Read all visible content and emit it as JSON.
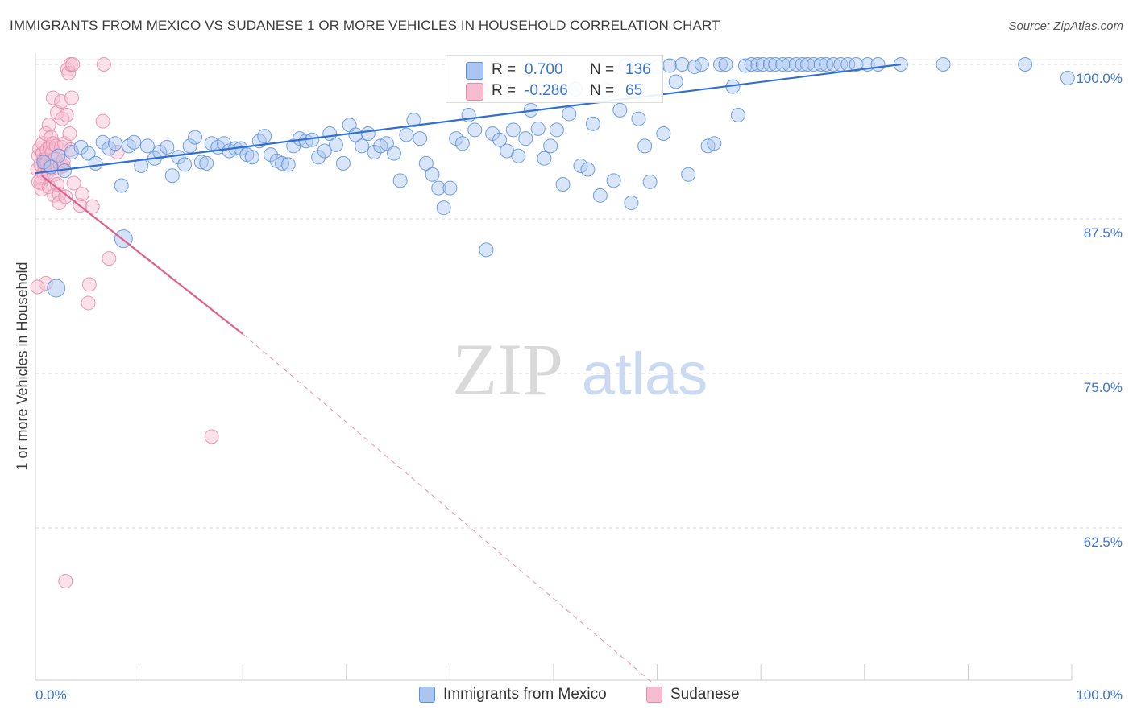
{
  "header": {
    "title": "IMMIGRANTS FROM MEXICO VS SUDANESE 1 OR MORE VEHICLES IN HOUSEHOLD CORRELATION CHART",
    "source": "Source: ZipAtlas.com"
  },
  "watermark": {
    "zip": "ZIP",
    "atlas": "atlas"
  },
  "colors": {
    "blue": "#5b8fe0",
    "blue_fill": "#aac6f0",
    "blue_line": "#2e6fd4",
    "pink": "#e88aa8",
    "pink_fill": "#f6bdd0",
    "pink_line": "#e06090",
    "axis_text": "#3a74d6",
    "grid": "#dddddd"
  },
  "legend_box": {
    "rows": [
      {
        "r_label": "R =",
        "r_value": "0.700",
        "n_label": "N =",
        "n_value": "136"
      },
      {
        "r_label": "R =",
        "r_value": "-0.286",
        "n_label": "N =",
        "n_value": "65"
      }
    ]
  },
  "legend_bottom": {
    "items": [
      "Immigrants from Mexico",
      "Sudanese"
    ]
  },
  "chart_data": {
    "type": "scatter",
    "title": "IMMIGRANTS FROM MEXICO VS SUDANESE 1 OR MORE VEHICLES IN HOUSEHOLD CORRELATION CHART",
    "xlabel": "",
    "ylabel": "1 or more Vehicles in Household",
    "xlim": [
      0,
      100
    ],
    "ylim": [
      50,
      101.5
    ],
    "x_tick_labels": [
      {
        "x": 0,
        "label": "0.0%"
      },
      {
        "x": 100,
        "label": "100.0%"
      }
    ],
    "y_tick_labels": [
      {
        "y": 100,
        "label": "100.0%"
      },
      {
        "y": 87.5,
        "label": "87.5%"
      },
      {
        "y": 75,
        "label": "75.0%"
      },
      {
        "y": 62.5,
        "label": "62.5%"
      }
    ],
    "grid": true,
    "legend_position": "bottom",
    "series": [
      {
        "name": "Immigrants from Mexico",
        "r": 0.7,
        "n": 136,
        "trend": {
          "x": [
            0,
            83.5
          ],
          "y": [
            91.2,
            100.0
          ]
        },
        "points": [
          [
            0.8,
            92.1
          ],
          [
            1.5,
            91.7
          ],
          [
            2.2,
            92.6
          ],
          [
            2.8,
            91.4
          ],
          [
            3.5,
            92.9
          ],
          [
            4.4,
            93.3
          ],
          [
            5.1,
            92.8
          ],
          [
            5.8,
            92.0
          ],
          [
            6.5,
            93.7
          ],
          [
            7.1,
            93.2
          ],
          [
            7.7,
            93.6
          ],
          [
            8.3,
            90.2
          ],
          [
            9.0,
            93.4
          ],
          [
            9.5,
            93.7
          ],
          [
            10.2,
            91.8
          ],
          [
            10.8,
            93.4
          ],
          [
            11.5,
            92.4
          ],
          [
            12.0,
            92.9
          ],
          [
            12.7,
            93.3
          ],
          [
            13.2,
            91.0
          ],
          [
            13.8,
            92.5
          ],
          [
            14.4,
            91.9
          ],
          [
            14.9,
            93.4
          ],
          [
            15.4,
            94.1
          ],
          [
            16.0,
            92.1
          ],
          [
            16.5,
            92.0
          ],
          [
            17.0,
            93.6
          ],
          [
            17.6,
            93.3
          ],
          [
            18.2,
            93.6
          ],
          [
            18.7,
            93.0
          ],
          [
            19.3,
            93.2
          ],
          [
            19.8,
            93.2
          ],
          [
            20.4,
            92.7
          ],
          [
            20.9,
            92.5
          ],
          [
            21.6,
            93.8
          ],
          [
            22.1,
            94.2
          ],
          [
            22.7,
            92.7
          ],
          [
            23.3,
            92.2
          ],
          [
            23.8,
            92.0
          ],
          [
            24.4,
            91.9
          ],
          [
            24.9,
            93.4
          ],
          [
            25.5,
            94.0
          ],
          [
            26.1,
            93.8
          ],
          [
            26.7,
            93.9
          ],
          [
            27.3,
            92.5
          ],
          [
            27.9,
            93.0
          ],
          [
            28.4,
            94.4
          ],
          [
            29.0,
            93.5
          ],
          [
            29.7,
            92.0
          ],
          [
            30.3,
            95.1
          ],
          [
            30.9,
            94.3
          ],
          [
            31.5,
            93.4
          ],
          [
            32.1,
            94.4
          ],
          [
            32.7,
            92.9
          ],
          [
            33.3,
            93.4
          ],
          [
            33.9,
            93.6
          ],
          [
            34.6,
            92.8
          ],
          [
            35.2,
            90.6
          ],
          [
            35.8,
            94.3
          ],
          [
            36.5,
            95.5
          ],
          [
            37.1,
            94.0
          ],
          [
            37.7,
            92.0
          ],
          [
            38.3,
            91.1
          ],
          [
            38.9,
            90.0
          ],
          [
            39.4,
            88.4
          ],
          [
            40.0,
            90.0
          ],
          [
            40.6,
            94.0
          ],
          [
            41.2,
            93.6
          ],
          [
            41.8,
            95.9
          ],
          [
            42.4,
            94.7
          ],
          [
            43.0,
            98.1
          ],
          [
            43.5,
            85.0
          ],
          [
            44.1,
            94.4
          ],
          [
            44.8,
            93.9
          ],
          [
            45.5,
            93.0
          ],
          [
            46.1,
            94.7
          ],
          [
            46.6,
            92.6
          ],
          [
            47.3,
            94.0
          ],
          [
            47.8,
            96.3
          ],
          [
            48.5,
            94.8
          ],
          [
            49.1,
            92.4
          ],
          [
            49.7,
            93.4
          ],
          [
            50.3,
            94.7
          ],
          [
            50.9,
            90.3
          ],
          [
            51.5,
            96.0
          ],
          [
            52.1,
            98.0
          ],
          [
            52.6,
            91.8
          ],
          [
            53.3,
            91.5
          ],
          [
            53.8,
            95.2
          ],
          [
            54.5,
            89.4
          ],
          [
            55.1,
            97.9
          ],
          [
            55.8,
            90.6
          ],
          [
            56.4,
            96.3
          ],
          [
            57.0,
            99.9
          ],
          [
            57.5,
            88.8
          ],
          [
            58.2,
            95.6
          ],
          [
            58.8,
            93.4
          ],
          [
            59.3,
            90.5
          ],
          [
            60.0,
            99.8
          ],
          [
            60.6,
            94.4
          ],
          [
            61.2,
            99.9
          ],
          [
            61.8,
            98.6
          ],
          [
            62.4,
            100.0
          ],
          [
            63.0,
            91.1
          ],
          [
            63.6,
            99.8
          ],
          [
            64.3,
            100.0
          ],
          [
            64.9,
            93.4
          ],
          [
            65.5,
            93.6
          ],
          [
            66.1,
            100.0
          ],
          [
            66.6,
            100.0
          ],
          [
            67.3,
            98.2
          ],
          [
            67.8,
            95.9
          ],
          [
            68.5,
            99.9
          ],
          [
            69.1,
            100.0
          ],
          [
            69.7,
            100.0
          ],
          [
            70.2,
            100.0
          ],
          [
            70.9,
            100.0
          ],
          [
            71.4,
            100.0
          ],
          [
            72.1,
            100.0
          ],
          [
            72.7,
            100.0
          ],
          [
            73.4,
            100.0
          ],
          [
            74.0,
            100.0
          ],
          [
            74.5,
            100.0
          ],
          [
            75.1,
            100.0
          ],
          [
            75.8,
            100.0
          ],
          [
            76.3,
            100.0
          ],
          [
            77.0,
            100.0
          ],
          [
            77.7,
            100.0
          ],
          [
            78.4,
            100.0
          ],
          [
            79.2,
            100.0
          ],
          [
            80.3,
            100.0
          ],
          [
            81.3,
            100.0
          ],
          [
            83.5,
            100.0
          ],
          [
            87.6,
            100.0
          ],
          [
            95.5,
            100.0
          ],
          [
            99.6,
            98.9
          ]
        ],
        "large_points": [
          [
            2.0,
            81.9
          ],
          [
            8.5,
            85.9
          ]
        ]
      },
      {
        "name": "Sudanese",
        "r": -0.286,
        "n": 65,
        "trend": {
          "x": [
            0.6,
            20.0
          ],
          "y": [
            91.0,
            78.2
          ]
        },
        "trend_extension": {
          "x": [
            20.0,
            59.5
          ],
          "y": [
            78.2,
            50.0
          ]
        },
        "points": [
          [
            0.2,
            91.5
          ],
          [
            0.3,
            92.6
          ],
          [
            0.4,
            93.2
          ],
          [
            0.5,
            90.4
          ],
          [
            0.5,
            91.9
          ],
          [
            0.6,
            90.8
          ],
          [
            0.6,
            89.9
          ],
          [
            0.7,
            92.8
          ],
          [
            0.7,
            93.6
          ],
          [
            0.8,
            92.3
          ],
          [
            0.8,
            91.2
          ],
          [
            0.9,
            91.7
          ],
          [
            0.9,
            92.0
          ],
          [
            1.0,
            94.4
          ],
          [
            1.1,
            93.1
          ],
          [
            1.1,
            92.1
          ],
          [
            1.2,
            91.3
          ],
          [
            1.3,
            95.1
          ],
          [
            1.3,
            90.1
          ],
          [
            1.4,
            93.3
          ],
          [
            1.4,
            91.8
          ],
          [
            1.5,
            94.1
          ],
          [
            1.6,
            92.9
          ],
          [
            1.7,
            97.3
          ],
          [
            1.7,
            93.6
          ],
          [
            1.8,
            89.4
          ],
          [
            1.8,
            91.1
          ],
          [
            1.9,
            92.4
          ],
          [
            2.0,
            93.4
          ],
          [
            2.1,
            96.1
          ],
          [
            2.1,
            90.3
          ],
          [
            2.2,
            91.6
          ],
          [
            2.3,
            89.5
          ],
          [
            2.3,
            88.8
          ],
          [
            2.4,
            91.9
          ],
          [
            2.5,
            97.0
          ],
          [
            2.5,
            93.3
          ],
          [
            2.6,
            95.6
          ],
          [
            2.7,
            91.8
          ],
          [
            2.8,
            93.6
          ],
          [
            2.9,
            89.3
          ],
          [
            3.0,
            95.9
          ],
          [
            3.1,
            99.6
          ],
          [
            3.2,
            99.3
          ],
          [
            3.3,
            94.4
          ],
          [
            3.4,
            93.1
          ],
          [
            3.4,
            100.0
          ],
          [
            3.5,
            97.3
          ],
          [
            3.6,
            100.0
          ],
          [
            3.7,
            90.4
          ],
          [
            4.3,
            88.6
          ],
          [
            4.5,
            89.5
          ],
          [
            5.1,
            80.7
          ],
          [
            5.2,
            82.2
          ],
          [
            5.5,
            88.5
          ],
          [
            6.5,
            95.4
          ],
          [
            6.6,
            100.0
          ],
          [
            7.1,
            84.3
          ],
          [
            7.9,
            92.9
          ],
          [
            17.0,
            69.9
          ],
          [
            1.0,
            82.3
          ],
          [
            2.9,
            58.2
          ],
          [
            0.2,
            82.0
          ],
          [
            0.3,
            90.5
          ],
          [
            2.7,
            92.2
          ]
        ],
        "large_points": []
      }
    ]
  }
}
